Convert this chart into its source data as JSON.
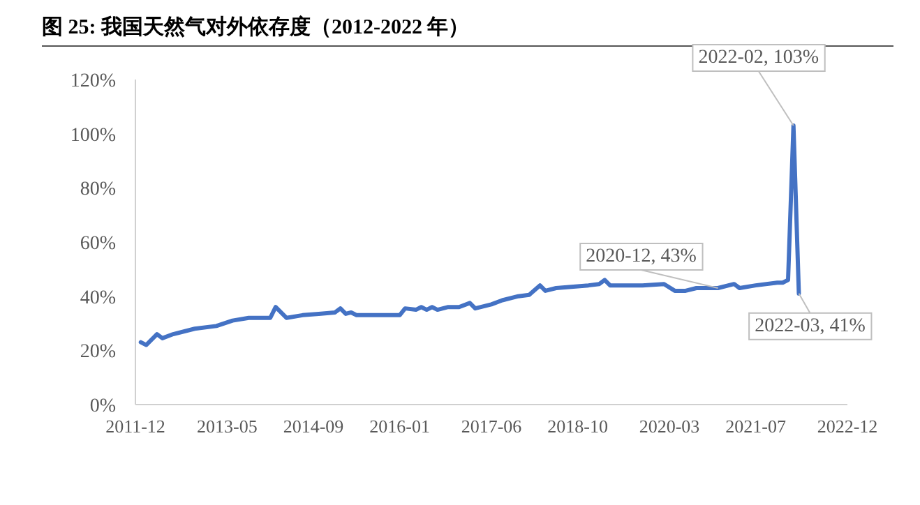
{
  "chart_data": {
    "type": "line",
    "title": "图 25:  我国天然气对外依存度（2012-2022 年）",
    "x": [
      "2012-01",
      "2012-02",
      "2012-04",
      "2012-05",
      "2012-07",
      "2012-11",
      "2013-03",
      "2013-06",
      "2013-09",
      "2013-12",
      "2014-01",
      "2014-02",
      "2014-04",
      "2014-07",
      "2014-10",
      "2015-01",
      "2015-02",
      "2015-03",
      "2015-04",
      "2015-05",
      "2015-11",
      "2016-01",
      "2016-02",
      "2016-04",
      "2016-05",
      "2016-06",
      "2016-07",
      "2016-08",
      "2016-10",
      "2016-12",
      "2017-02",
      "2017-03",
      "2017-06",
      "2017-08",
      "2017-11",
      "2018-01",
      "2018-03",
      "2018-04",
      "2018-06",
      "2018-12",
      "2019-02",
      "2019-03",
      "2019-04",
      "2019-10",
      "2020-02",
      "2020-04",
      "2020-06",
      "2020-08",
      "2020-12",
      "2021-03",
      "2021-04",
      "2021-07",
      "2021-11",
      "2021-12",
      "2022-01",
      "2022-02",
      "2022-03"
    ],
    "series": [
      {
        "color": "#4472c4",
        "values": [
          23,
          22,
          26,
          24.5,
          26,
          28,
          29,
          31,
          32,
          32,
          32,
          36,
          32,
          33,
          33.5,
          34,
          35.5,
          33.5,
          34,
          33,
          33,
          33,
          35.5,
          35,
          36,
          35,
          36,
          35,
          36,
          36,
          37.5,
          35.5,
          37,
          38.5,
          40,
          40.5,
          44,
          42,
          43,
          44,
          44.5,
          46,
          44,
          44,
          44.5,
          42,
          42,
          43,
          43,
          44.5,
          43,
          44,
          45,
          45,
          46,
          103,
          41
        ]
      }
    ],
    "xlim": [
      "2011-12",
      "2022-12"
    ],
    "xticks": [
      "2011-12",
      "2013-05",
      "2014-09",
      "2016-01",
      "2017-06",
      "2018-10",
      "2020-03",
      "2021-07",
      "2022-12"
    ],
    "ylim": [
      0,
      120
    ],
    "yticks": [
      {
        "value": 0,
        "label": "0%"
      },
      {
        "value": 20,
        "label": "20%"
      },
      {
        "value": 40,
        "label": "40%"
      },
      {
        "value": 60,
        "label": "60%"
      },
      {
        "value": 80,
        "label": "80%"
      },
      {
        "value": 100,
        "label": "100%"
      },
      {
        "value": 120,
        "label": "120%"
      }
    ],
    "annotations": [
      {
        "text": "2020-12, 43%",
        "x": "2020-12",
        "y": 43
      },
      {
        "text": "2022-02, 103%",
        "x": "2022-02",
        "y": 103
      },
      {
        "text": "2022-03, 41%",
        "x": "2022-03",
        "y": 41
      }
    ],
    "grid": false,
    "line_style": "solid",
    "marker": "none"
  }
}
